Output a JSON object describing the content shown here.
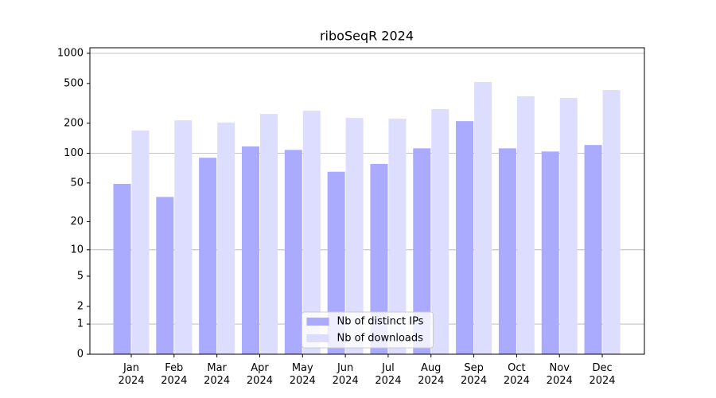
{
  "chart_data": {
    "type": "bar",
    "title": "riboSeqR 2024",
    "scale": "log1p",
    "categories": [
      "Jan 2024",
      "Feb 2024",
      "Mar 2024",
      "Apr 2024",
      "May 2024",
      "Jun 2024",
      "Jul 2024",
      "Aug 2024",
      "Sep 2024",
      "Oct 2024",
      "Nov 2024",
      "Dec 2024"
    ],
    "series": [
      {
        "name": "Nb of distinct IPs",
        "color": "#aaaaff",
        "values": [
          49,
          36,
          90,
          117,
          108,
          65,
          78,
          112,
          210,
          112,
          104,
          121
        ]
      },
      {
        "name": "Nb of downloads",
        "color": "#ddddff",
        "values": [
          169,
          214,
          203,
          248,
          267,
          226,
          222,
          277,
          517,
          372,
          358,
          430
        ]
      }
    ],
    "ylim": [
      0,
      1136
    ],
    "yticks": [
      0,
      1,
      2,
      5,
      10,
      20,
      50,
      100,
      200,
      500,
      1000
    ],
    "grid": true,
    "legend": "lower center"
  }
}
